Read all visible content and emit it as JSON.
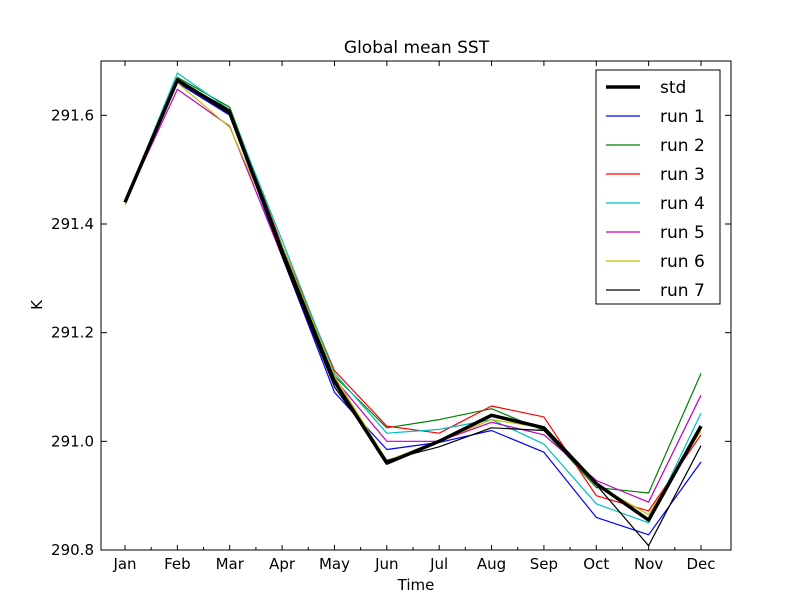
{
  "chart_data": {
    "type": "line",
    "title": "Global mean SST",
    "xlabel": "Time",
    "ylabel": "K",
    "categories": [
      "Jan",
      "Feb",
      "Mar",
      "Apr",
      "May",
      "Jun",
      "Jul",
      "Aug",
      "Sep",
      "Oct",
      "Nov",
      "Dec"
    ],
    "ylim": [
      290.8,
      291.7
    ],
    "yticks": [
      "290.8",
      "291.0",
      "291.2",
      "291.4",
      "291.6"
    ],
    "grid": false,
    "legend_position": "top-right",
    "series": [
      {
        "name": "std",
        "color": "#000000",
        "emphasis": "bold",
        "values": [
          291.44,
          291.665,
          291.605,
          291.35,
          291.11,
          290.96,
          291.0,
          291.048,
          291.025,
          290.922,
          290.855,
          291.028
        ]
      },
      {
        "name": "run 1",
        "color": "#0000ff",
        "values": [
          291.44,
          291.66,
          291.6,
          291.34,
          291.09,
          290.985,
          290.998,
          291.02,
          290.98,
          290.86,
          290.828,
          290.962
        ]
      },
      {
        "name": "run 2",
        "color": "#008000",
        "values": [
          291.44,
          291.67,
          291.615,
          291.36,
          291.12,
          291.025,
          291.04,
          291.06,
          291.02,
          290.915,
          290.905,
          291.125
        ]
      },
      {
        "name": "run 3",
        "color": "#ff0000",
        "values": [
          291.44,
          291.665,
          291.61,
          291.36,
          291.13,
          291.028,
          291.015,
          291.065,
          291.045,
          290.9,
          290.872,
          291.012
        ]
      },
      {
        "name": "run 4",
        "color": "#00bfbf",
        "values": [
          291.44,
          291.678,
          291.61,
          291.37,
          291.125,
          291.015,
          291.022,
          291.04,
          290.995,
          290.885,
          290.85,
          291.052
        ]
      },
      {
        "name": "run 5",
        "color": "#bf00bf",
        "values": [
          291.44,
          291.648,
          291.58,
          291.34,
          291.115,
          291.0,
          291.0,
          291.035,
          291.012,
          290.928,
          290.888,
          291.085
        ]
      },
      {
        "name": "run 6",
        "color": "#bfbf00",
        "values": [
          291.435,
          291.66,
          291.578,
          291.36,
          291.12,
          290.965,
          291.0,
          291.04,
          291.025,
          290.92,
          290.865,
          291.02
        ]
      },
      {
        "name": "run 7",
        "color": "#000000",
        "values": [
          291.44,
          291.665,
          291.61,
          291.34,
          291.1,
          290.965,
          290.99,
          291.025,
          291.02,
          290.92,
          290.808,
          290.992
        ]
      }
    ]
  }
}
